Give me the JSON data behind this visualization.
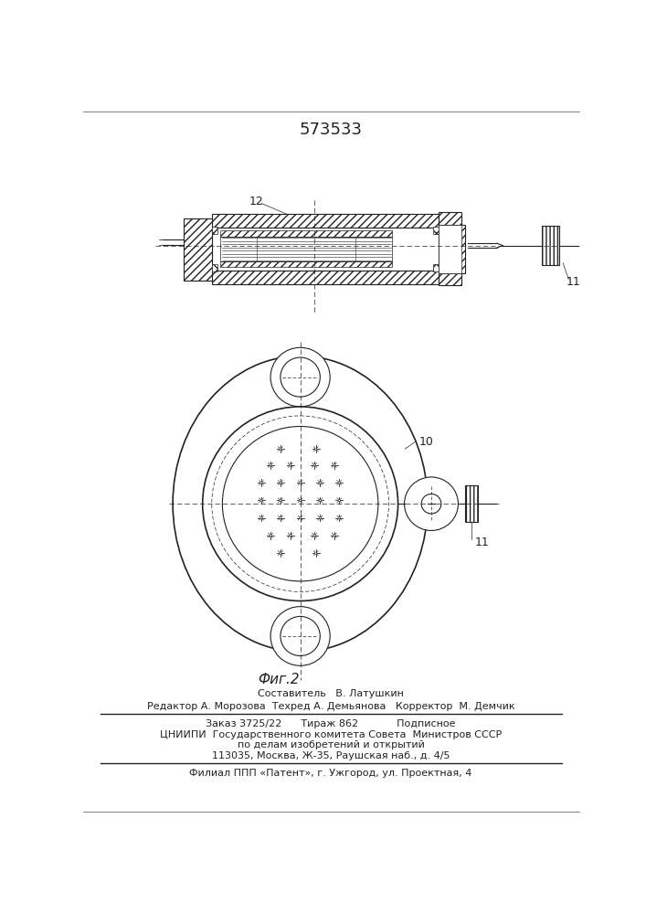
{
  "title": "573533",
  "fig2_label": "Фиг.2",
  "label_12": "12",
  "label_11": "11",
  "label_10": "10",
  "footer_line1": "Составитель   В. Латушкин",
  "footer_line2": "Редактор А. Морозова  Техред А. Демьянова   Корректор  М. Демчик",
  "footer_line3": "Заказ 3725/22      Тираж 862            Подписное",
  "footer_line4": "ЦНИИПИ  Государственного комитета Совета  Министров СССР",
  "footer_line5": "по делам изобретений и открытий",
  "footer_line6": "113035, Москва, Ж-35, Раушская наб., д. 4/5",
  "footer_line7": "Филиал ППП «Патент», г. Ужгород, ул. Проектная, 4",
  "bg_color": "#ffffff",
  "line_color": "#222222"
}
